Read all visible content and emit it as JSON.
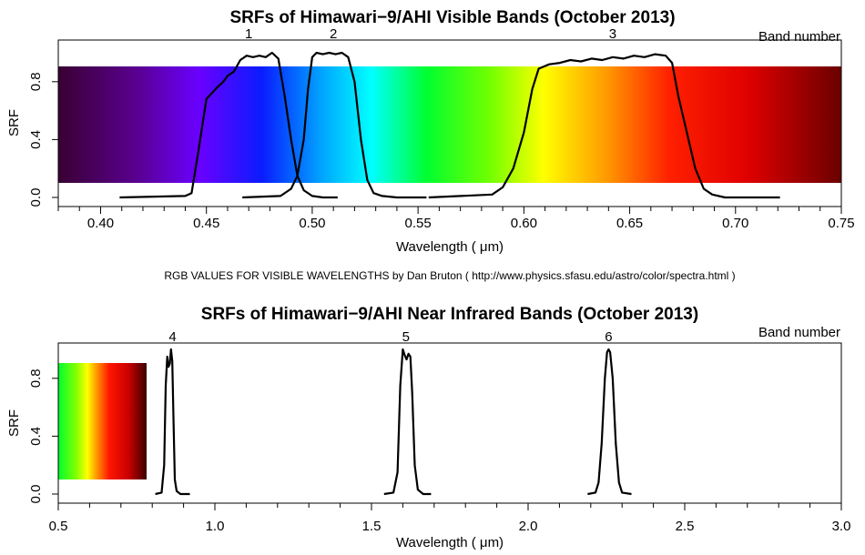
{
  "credit": "RGB VALUES FOR VISIBLE WAVELENGTHS   by Dan Bruton ( http://www.physics.sfasu.edu/astro/color/spectra.html )",
  "chart_data": [
    {
      "type": "line",
      "title": "SRFs of Himawari−9/AHI Visible Bands (October 2013)",
      "xlabel": "Wavelength ( μm)",
      "ylabel": "SRF",
      "xlim": [
        0.38,
        0.75
      ],
      "ylim": [
        -0.04,
        1.04
      ],
      "x_ticks": [
        0.4,
        0.45,
        0.5,
        0.55,
        0.6,
        0.65,
        0.7,
        0.75
      ],
      "x_tick_labels": [
        "0.40",
        "0.45",
        "0.50",
        "0.55",
        "0.60",
        "0.65",
        "0.70",
        "0.75"
      ],
      "y_ticks": [
        0.0,
        0.4,
        0.8
      ],
      "y_tick_labels": [
        "0.0",
        "0.4",
        "0.8"
      ],
      "band_number_label": "Band number",
      "background": "visible spectrum color bar",
      "series": [
        {
          "name": "1",
          "label_x": 0.47,
          "x": [
            0.409,
            0.44,
            0.443,
            0.446,
            0.45,
            0.455,
            0.458,
            0.46,
            0.463,
            0.466,
            0.469,
            0.472,
            0.475,
            0.478,
            0.481,
            0.484,
            0.487,
            0.49,
            0.493,
            0.496,
            0.5,
            0.505,
            0.512
          ],
          "y": [
            0.0,
            0.01,
            0.03,
            0.3,
            0.68,
            0.76,
            0.8,
            0.84,
            0.87,
            0.95,
            0.98,
            0.97,
            0.98,
            0.97,
            1.0,
            0.96,
            0.7,
            0.4,
            0.15,
            0.05,
            0.01,
            0.0,
            0.0
          ]
        },
        {
          "name": "2",
          "label_x": 0.51,
          "x": [
            0.467,
            0.485,
            0.49,
            0.493,
            0.496,
            0.498,
            0.5,
            0.502,
            0.505,
            0.508,
            0.511,
            0.514,
            0.517,
            0.52,
            0.523,
            0.526,
            0.529,
            0.533,
            0.54,
            0.554
          ],
          "y": [
            0.0,
            0.01,
            0.06,
            0.15,
            0.4,
            0.75,
            0.97,
            1.0,
            0.99,
            1.0,
            0.99,
            1.0,
            0.97,
            0.8,
            0.4,
            0.12,
            0.03,
            0.01,
            0.0,
            0.0
          ]
        },
        {
          "name": "3",
          "label_x": 0.642,
          "x": [
            0.555,
            0.585,
            0.59,
            0.595,
            0.6,
            0.604,
            0.607,
            0.612,
            0.617,
            0.622,
            0.627,
            0.632,
            0.637,
            0.642,
            0.647,
            0.652,
            0.657,
            0.662,
            0.667,
            0.67,
            0.673,
            0.677,
            0.681,
            0.685,
            0.689,
            0.695,
            0.721
          ],
          "y": [
            0.0,
            0.02,
            0.07,
            0.2,
            0.45,
            0.75,
            0.89,
            0.92,
            0.93,
            0.95,
            0.94,
            0.96,
            0.95,
            0.97,
            0.96,
            0.98,
            0.97,
            0.99,
            0.98,
            0.93,
            0.7,
            0.45,
            0.2,
            0.06,
            0.02,
            0.0,
            0.0
          ]
        }
      ]
    },
    {
      "type": "line",
      "title": "SRFs of Himawari−9/AHI Near Infrared Bands (October 2013)",
      "xlabel": "Wavelength ( μm)",
      "ylabel": "SRF",
      "xlim": [
        0.5,
        3.0
      ],
      "ylim": [
        -0.04,
        1.04
      ],
      "x_ticks": [
        0.5,
        1.0,
        1.5,
        2.0,
        2.5,
        3.0
      ],
      "x_tick_labels": [
        "0.5",
        "1.0",
        "1.5",
        "2.0",
        "2.5",
        "3.0"
      ],
      "y_ticks": [
        0.0,
        0.4,
        0.8
      ],
      "y_tick_labels": [
        "0.0",
        "0.4",
        "0.8"
      ],
      "band_number_label": "Band number",
      "background": "near-infrared color bar",
      "series": [
        {
          "name": "4",
          "label_x": 0.865,
          "x": [
            0.81,
            0.83,
            0.838,
            0.843,
            0.848,
            0.852,
            0.856,
            0.86,
            0.864,
            0.868,
            0.872,
            0.878,
            0.89,
            0.92
          ],
          "y": [
            0.0,
            0.01,
            0.2,
            0.75,
            0.95,
            0.88,
            0.9,
            1.0,
            0.92,
            0.5,
            0.1,
            0.02,
            0.0,
            0.0
          ]
        },
        {
          "name": "5",
          "label_x": 1.61,
          "x": [
            1.54,
            1.57,
            1.583,
            1.592,
            1.6,
            1.606,
            1.612,
            1.618,
            1.624,
            1.63,
            1.638,
            1.648,
            1.665,
            1.69
          ],
          "y": [
            0.0,
            0.01,
            0.15,
            0.75,
            1.0,
            0.96,
            0.93,
            0.97,
            0.95,
            0.7,
            0.2,
            0.03,
            0.0,
            0.0
          ]
        },
        {
          "name": "6",
          "label_x": 2.257,
          "x": [
            2.19,
            2.215,
            2.225,
            2.235,
            2.245,
            2.252,
            2.257,
            2.262,
            2.27,
            2.28,
            2.29,
            2.3,
            2.33
          ],
          "y": [
            0.0,
            0.01,
            0.08,
            0.35,
            0.8,
            0.98,
            1.0,
            0.98,
            0.8,
            0.35,
            0.08,
            0.01,
            0.0
          ]
        }
      ]
    }
  ]
}
